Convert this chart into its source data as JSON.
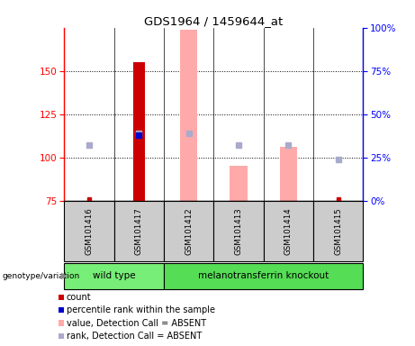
{
  "title": "GDS1964 / 1459644_at",
  "samples": [
    "GSM101416",
    "GSM101417",
    "GSM101412",
    "GSM101413",
    "GSM101414",
    "GSM101415"
  ],
  "ylim_left": [
    75,
    175
  ],
  "ylim_right": [
    0,
    100
  ],
  "yticks_left": [
    75,
    100,
    125,
    150
  ],
  "yticks_right": [
    0,
    25,
    50,
    75,
    100
  ],
  "count_bars": {
    "GSM101416": null,
    "GSM101417": 155,
    "GSM101412": null,
    "GSM101413": null,
    "GSM101414": null,
    "GSM101415": null
  },
  "percentile_bars": {
    "GSM101416": null,
    "GSM101417": 113,
    "GSM101412": null,
    "GSM101413": null,
    "GSM101414": null,
    "GSM101415": null
  },
  "absent_value_bars": {
    "GSM101416": null,
    "GSM101417": null,
    "GSM101412": 174,
    "GSM101413": 95,
    "GSM101414": 106,
    "GSM101415": null
  },
  "absent_rank_markers": {
    "GSM101416": 107,
    "GSM101417": 114,
    "GSM101412": 114,
    "GSM101413": 107,
    "GSM101414": 107,
    "GSM101415": 99
  },
  "small_red_markers": {
    "GSM101416": 76,
    "GSM101415": 76
  },
  "count_bar_width": 0.25,
  "absent_bar_width": 0.35,
  "count_color": "#cc0000",
  "percentile_color": "#0000cc",
  "absent_value_color": "#ffaaaa",
  "absent_rank_color": "#aaaacc",
  "baseline": 75,
  "legend_items": [
    {
      "label": "count",
      "color": "#cc0000"
    },
    {
      "label": "percentile rank within the sample",
      "color": "#0000cc"
    },
    {
      "label": "value, Detection Call = ABSENT",
      "color": "#ffaaaa"
    },
    {
      "label": "rank, Detection Call = ABSENT",
      "color": "#aaaacc"
    }
  ],
  "wild_type_color": "#77ee77",
  "knockout_color": "#55dd55",
  "sample_bg_color": "#cccccc"
}
